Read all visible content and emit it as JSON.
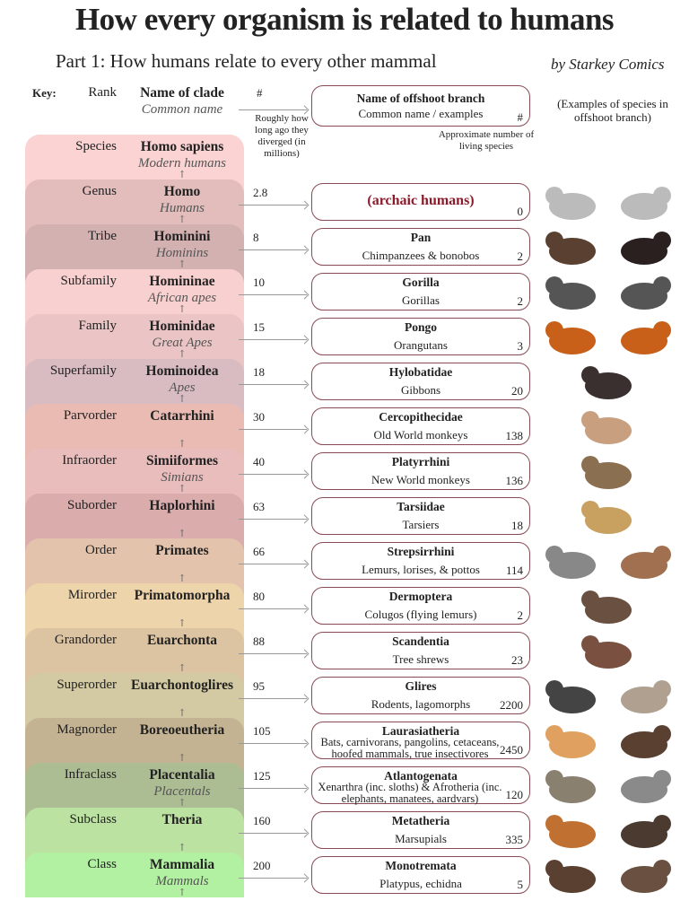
{
  "title": "How every organism is related to humans",
  "subtitle": "Part 1: How humans relate to every other mammal",
  "byline": "by Starkey Comics",
  "key": {
    "label": "Key:",
    "rank": "Rank",
    "clade": "Name of clade",
    "common": "Common name",
    "mya_symbol": "#",
    "mya_note": "Roughly how long ago they diverged (in millions)",
    "branch_name": "Name of offshoot branch",
    "branch_common": "Common name / examples",
    "count_symbol": "#",
    "count_note": "Approximate number of living species",
    "examples_note": "(Examples of species in offshoot branch)"
  },
  "colors": {
    "branch_border": "#8a4a55",
    "archaic_text": "#8b1a2a"
  },
  "rows": [
    {
      "rank": "Species",
      "clade": "Homo sapiens",
      "common": "Modern humans",
      "color": "#fbd3d3"
    },
    {
      "rank": "Genus",
      "clade": "Homo",
      "common": "Humans",
      "color": "#e3bcbc",
      "mya": "2.8",
      "branch": {
        "name": "(archaic humans)",
        "common": "",
        "count": "0"
      },
      "animals": [
        "skull-icon",
        "skull-icon"
      ]
    },
    {
      "rank": "Tribe",
      "clade": "Hominini",
      "common": "Hominins",
      "color": "#d3b1b1",
      "mya": "8",
      "branch": {
        "name": "Pan",
        "common": "Chimpanzees & bonobos",
        "count": "2"
      },
      "animals": [
        "chimpanzee-icon",
        "bonobo-icon"
      ]
    },
    {
      "rank": "Subfamily",
      "clade": "Homininae",
      "common": "African apes",
      "color": "#f9d0d0",
      "mya": "10",
      "branch": {
        "name": "Gorilla",
        "common": "Gorillas",
        "count": "2"
      },
      "animals": [
        "gorilla-icon",
        "gorilla-icon"
      ]
    },
    {
      "rank": "Family",
      "clade": "Hominidae",
      "common": "Great Apes",
      "color": "#ebc5c5",
      "mya": "15",
      "branch": {
        "name": "Pongo",
        "common": "Orangutans",
        "count": "3"
      },
      "animals": [
        "orangutan-icon",
        "orangutan-icon"
      ]
    },
    {
      "rank": "Superfamily",
      "clade": "Hominoidea",
      "common": "Apes",
      "color": "#d9bcc2",
      "mya": "18",
      "branch": {
        "name": "Hylobatidae",
        "common": "Gibbons",
        "count": "20"
      },
      "animals": [
        "gibbon-icon"
      ]
    },
    {
      "rank": "Parvorder",
      "clade": "Catarrhini",
      "common": "",
      "color": "#eabbb3",
      "mya": "30",
      "branch": {
        "name": "Cercopithecidae",
        "common": "Old World monkeys",
        "count": "138"
      },
      "animals": [
        "macaque-icon"
      ]
    },
    {
      "rank": "Infraorder",
      "clade": "Simiiformes",
      "common": "Simians",
      "color": "#eabdbd",
      "mya": "40",
      "branch": {
        "name": "Platyrrhini",
        "common": "New World monkeys",
        "count": "136"
      },
      "animals": [
        "capuchin-icon"
      ]
    },
    {
      "rank": "Suborder",
      "clade": "Haplorhini",
      "common": "",
      "color": "#dbacac",
      "mya": "63",
      "branch": {
        "name": "Tarsiidae",
        "common": "Tarsiers",
        "count": "18"
      },
      "animals": [
        "tarsier-icon"
      ]
    },
    {
      "rank": "Order",
      "clade": "Primates",
      "common": "",
      "color": "#e3c3ac",
      "mya": "66",
      "branch": {
        "name": "Strepsirrhini",
        "common": "Lemurs, lorises, & pottos",
        "count": "114"
      },
      "animals": [
        "lemur-icon",
        "loris-icon"
      ]
    },
    {
      "rank": "Mirorder",
      "clade": "Primatomorpha",
      "common": "",
      "color": "#edd4ab",
      "mya": "80",
      "branch": {
        "name": "Dermoptera",
        "common": "Colugos (flying lemurs)",
        "count": "2"
      },
      "animals": [
        "colugo-icon"
      ]
    },
    {
      "rank": "Grandorder",
      "clade": "Euarchonta",
      "common": "",
      "color": "#dcc4a3",
      "mya": "88",
      "branch": {
        "name": "Scandentia",
        "common": "Tree shrews",
        "count": "23"
      },
      "animals": [
        "treeshrew-icon"
      ]
    },
    {
      "rank": "Superorder",
      "clade": "Euarchontoglires",
      "common": "",
      "color": "#d3c9a2",
      "mya": "95",
      "branch": {
        "name": "Glires",
        "common": "Rodents, lagomorphs",
        "count": "2200"
      },
      "animals": [
        "mouse-icon",
        "rabbit-icon"
      ]
    },
    {
      "rank": "Magnorder",
      "clade": "Boreoeutheria",
      "common": "",
      "color": "#c4b393",
      "mya": "105",
      "branch": {
        "name": "Laurasiatheria",
        "common": "Bats, carnivorans, pangolins, cetaceans, hoofed mammals, true insectivores",
        "count": "2450"
      },
      "animals": [
        "cat-icon",
        "boar-icon"
      ]
    },
    {
      "rank": "Infraclass",
      "clade": "Placentalia",
      "common": "Placentals",
      "color": "#acbc93",
      "mya": "125",
      "branch": {
        "name": "Atlantogenata",
        "common": "Xenarthra (inc. sloths) & Afrotheria (inc. elephants, manatees, aardvars)",
        "count": "120"
      },
      "animals": [
        "armadillo-icon",
        "elephant-icon"
      ]
    },
    {
      "rank": "Subclass",
      "clade": "Theria",
      "common": "",
      "color": "#bce2a2",
      "mya": "160",
      "branch": {
        "name": "Metatheria",
        "common": "Marsupials",
        "count": "335"
      },
      "animals": [
        "kangaroo-icon",
        "quoll-icon"
      ]
    },
    {
      "rank": "Class",
      "clade": "Mammalia",
      "common": "Mammals",
      "color": "#b3f1a2",
      "mya": "200",
      "branch": {
        "name": "Monotremata",
        "common": "Platypus, echidna",
        "count": "5"
      },
      "animals": [
        "platypus-icon",
        "echidna-icon"
      ]
    }
  ]
}
